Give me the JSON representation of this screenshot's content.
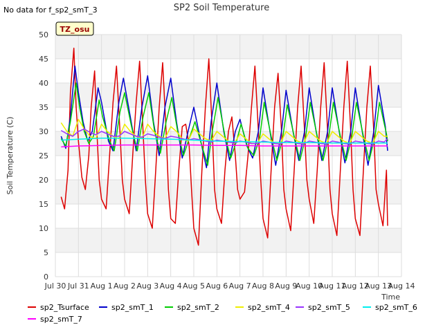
{
  "header": {
    "title": "SP2 Soil Temperature",
    "no_data_note": "No data for f_sp2_smT_3"
  },
  "badge": {
    "label": "TZ_osu"
  },
  "chart_data": {
    "type": "line",
    "title": "SP2 Soil Temperature",
    "xlabel": "Time",
    "ylabel": "Soil Temperature (C)",
    "ylim": [
      0,
      50
    ],
    "xlim": [
      0,
      15
    ],
    "grid": true,
    "legend_position": "bottom",
    "x_ticks": [
      {
        "v": 0,
        "label": "Jul 30"
      },
      {
        "v": 1,
        "label": "Jul 31"
      },
      {
        "v": 2,
        "label": "Aug 1"
      },
      {
        "v": 3,
        "label": "Aug 2"
      },
      {
        "v": 4,
        "label": "Aug 3"
      },
      {
        "v": 5,
        "label": "Aug 4"
      },
      {
        "v": 6,
        "label": "Aug 5"
      },
      {
        "v": 7,
        "label": "Aug 6"
      },
      {
        "v": 8,
        "label": "Aug 7"
      },
      {
        "v": 9,
        "label": "Aug 8"
      },
      {
        "v": 10,
        "label": "Aug 9"
      },
      {
        "v": 11,
        "label": "Aug 10"
      },
      {
        "v": 12,
        "label": "Aug 11"
      },
      {
        "v": 13,
        "label": "Aug 12"
      },
      {
        "v": 14,
        "label": "Aug 13"
      },
      {
        "v": 15,
        "label": "Aug 14"
      }
    ],
    "y_ticks": [
      0,
      5,
      10,
      15,
      20,
      25,
      30,
      35,
      40,
      45,
      50
    ],
    "series": [
      {
        "name": "sp2_Tsurface",
        "color": "#dd0000",
        "x": [
          0.25,
          0.4,
          0.55,
          0.65,
          0.8,
          0.9,
          1.0,
          1.15,
          1.3,
          1.45,
          1.55,
          1.7,
          1.8,
          1.9,
          2.0,
          2.2,
          2.35,
          2.5,
          2.65,
          2.8,
          2.9,
          3.0,
          3.2,
          3.35,
          3.5,
          3.65,
          3.8,
          3.9,
          4.0,
          4.2,
          4.35,
          4.5,
          4.65,
          4.8,
          4.9,
          5.0,
          5.2,
          5.35,
          5.5,
          5.65,
          5.8,
          5.9,
          6.0,
          6.2,
          6.35,
          6.5,
          6.65,
          6.8,
          6.9,
          7.0,
          7.2,
          7.35,
          7.5,
          7.65,
          7.8,
          7.9,
          8.0,
          8.2,
          8.35,
          8.5,
          8.65,
          8.8,
          8.9,
          9.0,
          9.2,
          9.35,
          9.5,
          9.65,
          9.8,
          9.9,
          10.0,
          10.2,
          10.35,
          10.5,
          10.65,
          10.8,
          10.9,
          11.0,
          11.2,
          11.35,
          11.5,
          11.65,
          11.8,
          11.9,
          12.0,
          12.2,
          12.35,
          12.5,
          12.65,
          12.8,
          12.9,
          13.0,
          13.2,
          13.35,
          13.5,
          13.65,
          13.8,
          13.9,
          14.0,
          14.2,
          14.35,
          14.4
        ],
        "y": [
          16.5,
          14.0,
          22.0,
          38.0,
          47.2,
          35.0,
          28.0,
          20.5,
          18.0,
          25.0,
          35.0,
          42.5,
          30.0,
          20.0,
          16.0,
          14.0,
          25.0,
          36.0,
          43.5,
          30.0,
          20.0,
          16.0,
          13.0,
          25.0,
          36.0,
          44.5,
          30.0,
          20.0,
          13.0,
          10.0,
          22.0,
          35.0,
          44.2,
          30.0,
          18.0,
          12.0,
          11.0,
          22.0,
          31.0,
          31.5,
          27.0,
          18.0,
          10.0,
          6.5,
          22.0,
          35.0,
          45.0,
          30.0,
          18.0,
          14.0,
          11.0,
          22.0,
          30.0,
          33.0,
          25.0,
          18.0,
          16.0,
          17.5,
          25.0,
          35.0,
          43.5,
          30.0,
          20.0,
          12.0,
          8.0,
          22.0,
          35.0,
          42.0,
          30.0,
          18.0,
          14.0,
          9.5,
          22.0,
          35.0,
          43.5,
          30.0,
          20.0,
          16.0,
          11.0,
          22.0,
          35.0,
          44.2,
          30.0,
          18.0,
          13.0,
          8.5,
          22.0,
          35.0,
          44.5,
          30.0,
          18.0,
          12.0,
          8.5,
          22.0,
          35.0,
          43.5,
          30.0,
          18.0,
          15.0,
          10.5,
          22.0,
          10.5
        ]
      },
      {
        "name": "sp2_smT_1",
        "color": "#0000cc",
        "x": [
          0.25,
          0.45,
          0.65,
          0.85,
          1.0,
          1.2,
          1.4,
          1.6,
          1.85,
          2.0,
          2.3,
          2.5,
          2.75,
          2.95,
          3.25,
          3.5,
          3.75,
          4.0,
          4.25,
          4.5,
          4.75,
          5.0,
          5.25,
          5.5,
          5.75,
          6.0,
          6.3,
          6.55,
          6.75,
          7.0,
          7.3,
          7.55,
          7.8,
          8.0,
          8.3,
          8.55,
          8.8,
          9.0,
          9.3,
          9.55,
          9.8,
          10.0,
          10.3,
          10.55,
          10.8,
          11.0,
          11.3,
          11.55,
          11.8,
          12.0,
          12.3,
          12.55,
          12.8,
          13.0,
          13.3,
          13.55,
          13.8,
          14.0,
          14.3,
          14.4
        ],
        "y": [
          29.0,
          26.5,
          33.0,
          43.5,
          38.0,
          32.0,
          28.0,
          30.0,
          39.0,
          36.0,
          28.0,
          26.0,
          36.0,
          41.0,
          33.0,
          26.0,
          35.0,
          41.5,
          32.0,
          25.0,
          35.0,
          41.0,
          32.0,
          24.5,
          30.0,
          35.0,
          28.0,
          22.5,
          32.0,
          40.0,
          30.0,
          24.0,
          30.0,
          32.5,
          27.0,
          24.5,
          30.0,
          39.0,
          30.0,
          23.0,
          30.0,
          38.5,
          30.0,
          24.0,
          30.0,
          39.0,
          30.0,
          24.0,
          30.0,
          39.0,
          30.0,
          23.5,
          30.0,
          39.0,
          30.0,
          23.0,
          30.0,
          39.5,
          31.0,
          26.0
        ]
      },
      {
        "name": "sp2_smT_2",
        "color": "#00cc00",
        "x": [
          0.25,
          0.45,
          0.65,
          0.9,
          1.05,
          1.25,
          1.45,
          1.65,
          1.9,
          2.05,
          2.35,
          2.55,
          2.8,
          3.0,
          3.3,
          3.55,
          3.8,
          4.05,
          4.3,
          4.55,
          4.8,
          5.05,
          5.3,
          5.55,
          5.8,
          6.05,
          6.35,
          6.6,
          6.8,
          7.05,
          7.35,
          7.6,
          7.85,
          8.05,
          8.35,
          8.6,
          8.85,
          9.05,
          9.35,
          9.6,
          9.85,
          10.05,
          10.35,
          10.6,
          10.85,
          11.05,
          11.35,
          11.6,
          11.85,
          12.05,
          12.35,
          12.6,
          12.85,
          13.05,
          13.35,
          13.6,
          13.85,
          14.05,
          14.35,
          14.4
        ],
        "y": [
          28.5,
          27.0,
          32.0,
          40.0,
          35.0,
          30.0,
          27.5,
          29.0,
          36.5,
          33.0,
          28.0,
          26.0,
          34.0,
          38.0,
          31.0,
          26.0,
          33.0,
          38.0,
          30.0,
          25.5,
          32.0,
          37.0,
          30.0,
          25.0,
          28.5,
          32.0,
          27.0,
          23.0,
          30.0,
          37.0,
          29.0,
          24.5,
          28.0,
          31.5,
          26.5,
          25.0,
          28.5,
          36.0,
          29.0,
          24.0,
          28.5,
          35.5,
          29.0,
          24.0,
          29.0,
          36.0,
          29.0,
          24.0,
          29.0,
          36.0,
          29.0,
          24.0,
          29.0,
          36.0,
          29.0,
          24.0,
          29.0,
          36.0,
          29.5,
          28.0
        ]
      },
      {
        "name": "sp2_smT_4",
        "color": "#eeee00",
        "x": [
          0.25,
          0.5,
          0.75,
          1.0,
          1.25,
          1.5,
          1.75,
          2.0,
          2.25,
          2.5,
          2.75,
          3.0,
          3.25,
          3.5,
          3.75,
          4.0,
          4.25,
          4.5,
          4.75,
          5.0,
          5.25,
          5.5,
          5.75,
          6.0,
          6.25,
          6.5,
          6.75,
          7.0,
          7.25,
          7.5,
          7.75,
          8.0,
          8.25,
          8.5,
          8.75,
          9.0,
          9.25,
          9.5,
          9.75,
          10.0,
          10.25,
          10.5,
          10.75,
          11.0,
          11.25,
          11.5,
          11.75,
          12.0,
          12.25,
          12.5,
          12.75,
          13.0,
          13.25,
          13.5,
          13.75,
          14.0,
          14.25,
          14.4
        ],
        "y": [
          31.8,
          30.0,
          29.0,
          32.5,
          30.5,
          29.0,
          28.5,
          31.5,
          30.0,
          29.0,
          28.5,
          31.5,
          30.0,
          29.0,
          28.5,
          31.5,
          30.0,
          29.0,
          28.5,
          31.0,
          30.0,
          28.5,
          28.0,
          30.5,
          29.5,
          28.5,
          28.0,
          30.0,
          29.0,
          28.0,
          27.5,
          29.5,
          28.5,
          27.5,
          27.5,
          29.5,
          28.5,
          27.5,
          27.5,
          30.0,
          29.0,
          28.0,
          27.5,
          30.0,
          29.0,
          28.0,
          27.5,
          30.0,
          29.0,
          28.0,
          27.5,
          30.0,
          29.0,
          28.0,
          27.5,
          30.0,
          29.0,
          29.0
        ]
      },
      {
        "name": "sp2_smT_5",
        "color": "#9933ff",
        "x": [
          0.25,
          0.5,
          0.75,
          1.0,
          1.25,
          1.5,
          1.75,
          2.0,
          2.25,
          2.5,
          2.75,
          3.0,
          3.25,
          3.5,
          3.75,
          4.0,
          4.25,
          4.5,
          4.75,
          5.0,
          5.25,
          5.5,
          5.75,
          6.0,
          6.25,
          6.5,
          6.75,
          7.0,
          7.25,
          7.5,
          7.75,
          8.0,
          8.25,
          8.5,
          8.75,
          9.0,
          9.25,
          9.5,
          9.75,
          10.0,
          10.25,
          10.5,
          10.75,
          11.0,
          11.25,
          11.5,
          11.75,
          12.0,
          12.25,
          12.5,
          12.75,
          13.0,
          13.25,
          13.5,
          13.75,
          14.0,
          14.25,
          14.4
        ],
        "y": [
          30.2,
          29.5,
          29.0,
          30.0,
          30.5,
          29.8,
          29.3,
          30.0,
          29.5,
          29.0,
          29.0,
          30.0,
          29.5,
          29.0,
          28.8,
          29.5,
          29.2,
          28.8,
          28.5,
          29.0,
          28.8,
          28.5,
          28.2,
          28.5,
          28.3,
          28.0,
          27.8,
          28.2,
          28.0,
          27.8,
          27.6,
          28.0,
          27.8,
          27.5,
          27.5,
          28.0,
          27.8,
          27.5,
          27.4,
          28.0,
          27.8,
          27.5,
          27.4,
          28.0,
          27.8,
          27.5,
          27.4,
          28.0,
          27.8,
          27.5,
          27.4,
          28.0,
          27.8,
          27.5,
          27.4,
          28.0,
          27.8,
          28.5
        ]
      },
      {
        "name": "sp2_smT_6",
        "color": "#00eeee",
        "x": [
          0.25,
          1.0,
          2.0,
          3.0,
          4.0,
          5.0,
          6.0,
          7.0,
          8.0,
          9.0,
          10.0,
          11.0,
          12.0,
          13.0,
          14.0,
          14.4
        ],
        "y": [
          28.2,
          28.4,
          28.6,
          28.6,
          28.5,
          28.4,
          28.2,
          28.0,
          27.9,
          27.8,
          27.7,
          27.7,
          27.6,
          27.6,
          27.6,
          27.6
        ]
      },
      {
        "name": "sp2_smT_7",
        "color": "#ff00ff",
        "x": [
          0.25,
          1.0,
          2.0,
          3.0,
          4.0,
          5.0,
          6.0,
          7.0,
          8.0,
          9.0,
          10.0,
          11.0,
          12.0,
          13.0,
          14.0,
          14.4
        ],
        "y": [
          26.8,
          27.0,
          27.1,
          27.2,
          27.2,
          27.2,
          27.2,
          27.1,
          27.1,
          27.0,
          27.0,
          27.0,
          27.0,
          27.0,
          27.0,
          27.0
        ]
      }
    ]
  }
}
